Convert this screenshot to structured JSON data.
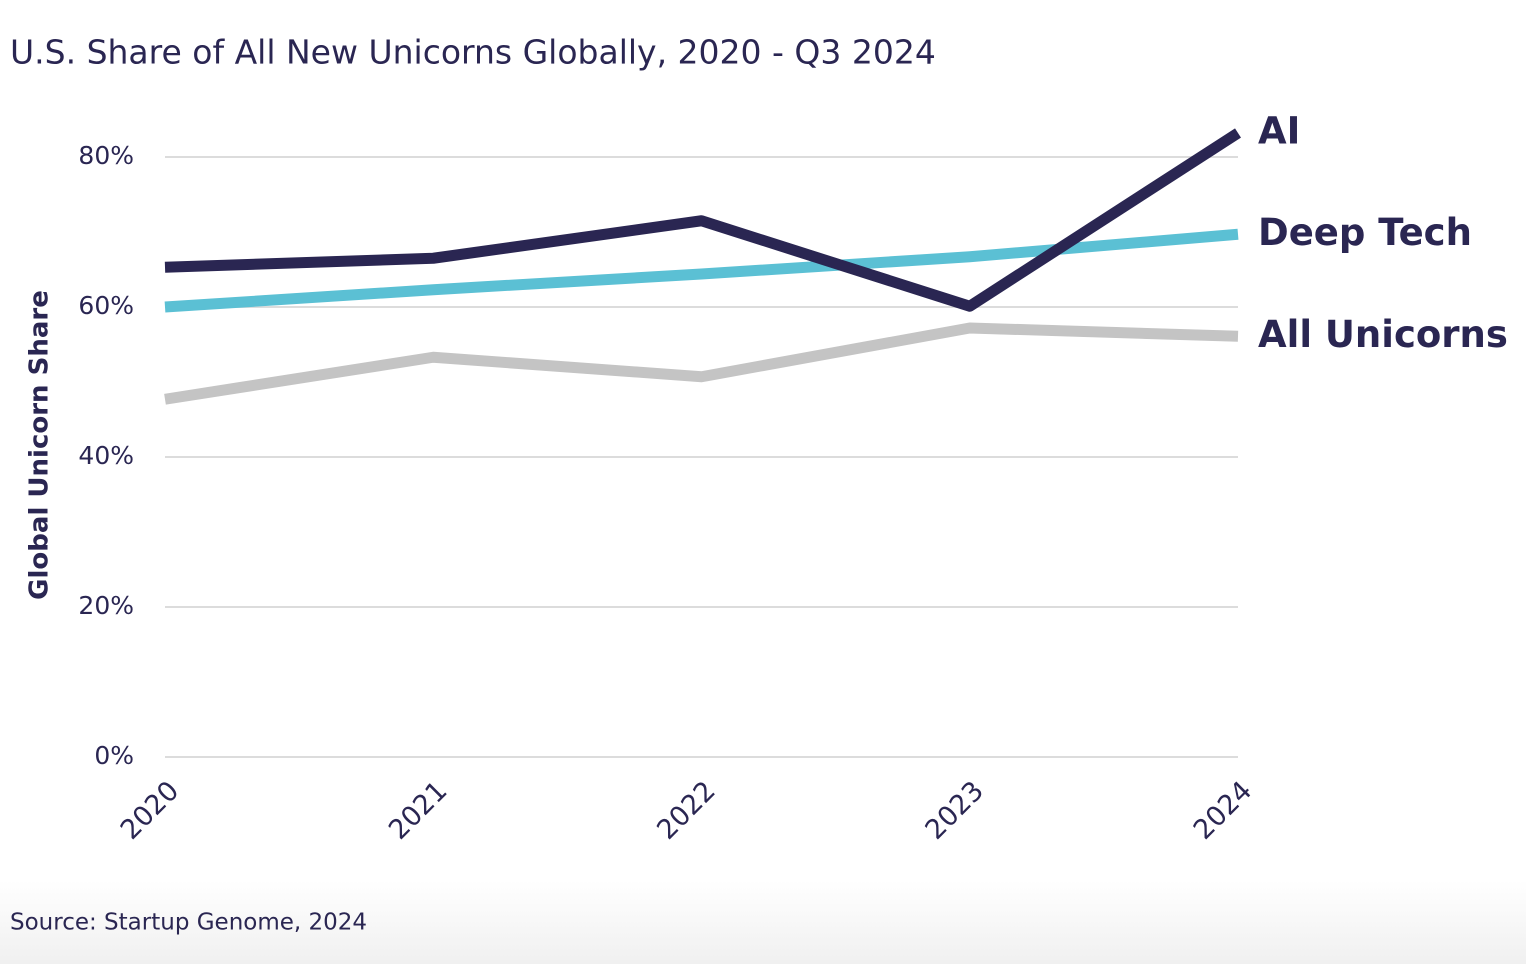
{
  "chart_data": {
    "type": "line",
    "title": "U.S. Share of All New Unicorns Globally, 2020 - Q3 2024",
    "y_label": "Global Unicorn Share",
    "source": "Source: Startup Genome, 2024",
    "categories": [
      "2020",
      "2021",
      "2022",
      "2023",
      "2024"
    ],
    "series": [
      {
        "name": "AI",
        "color": "#2a2652",
        "values": [
          65.3,
          66.5,
          71.5,
          60.1,
          83.2
        ]
      },
      {
        "name": "Deep Tech",
        "color": "#5bc0d4",
        "values": [
          60,
          62.3,
          64.4,
          66.7,
          69.7
        ]
      },
      {
        "name": "All Unicorns",
        "color": "#c4c4c4",
        "values": [
          47.7,
          53.3,
          50.7,
          57.2,
          56.1
        ]
      }
    ],
    "ylim": [
      0,
      80
    ],
    "yticks": [
      {
        "value": 0,
        "label": "0%"
      },
      {
        "value": 20,
        "label": "20%"
      },
      {
        "value": 40,
        "label": "40%"
      },
      {
        "value": 60,
        "label": "60%"
      },
      {
        "value": 80,
        "label": "80%"
      }
    ],
    "grid": true
  }
}
